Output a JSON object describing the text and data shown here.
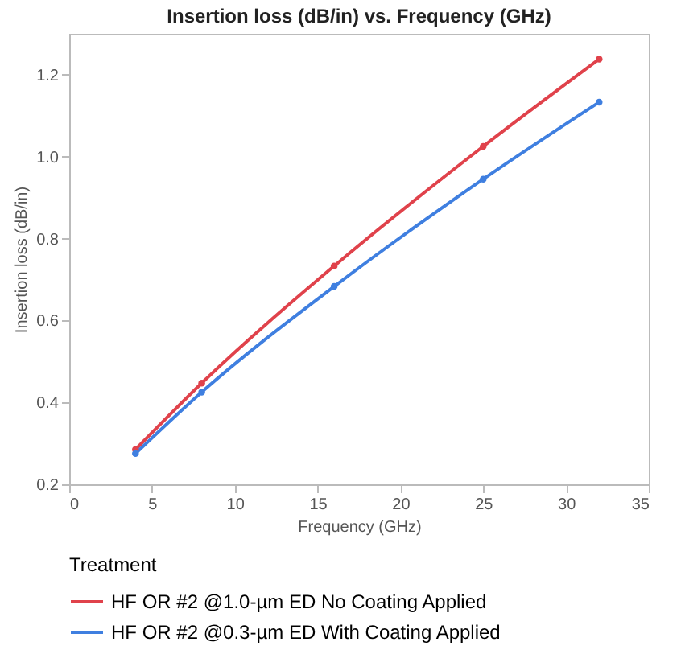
{
  "chart_data": {
    "type": "line",
    "title": "Insertion loss (dB/in) vs. Frequency (GHz)",
    "xlabel": "Frequency (GHz)",
    "ylabel": "Insertion loss (dB/in)",
    "legend_title": "Treatment",
    "legend": "bottom",
    "marker": "circle",
    "grid": false,
    "x": [
      4,
      8,
      16,
      25,
      32
    ],
    "series": [
      {
        "name": "HF OR #2 @1.0-µm ED No Coating Applied",
        "color": "#e0424b",
        "values": [
          0.285,
          0.447,
          0.733,
          1.025,
          1.238
        ]
      },
      {
        "name": "HF OR #2 @0.3-µm ED With Coating Applied",
        "color": "#3f7fe0",
        "values": [
          0.275,
          0.425,
          0.683,
          0.945,
          1.133
        ]
      }
    ],
    "xlim": [
      0,
      35
    ],
    "xticks": [
      0,
      5,
      10,
      15,
      20,
      25,
      30,
      35
    ],
    "ylim": [
      0.2,
      1.3
    ],
    "yticks": [
      0.2,
      0.4,
      0.6,
      0.8,
      {
        "value": 1,
        "label": "1.0"
      },
      1.2
    ]
  }
}
